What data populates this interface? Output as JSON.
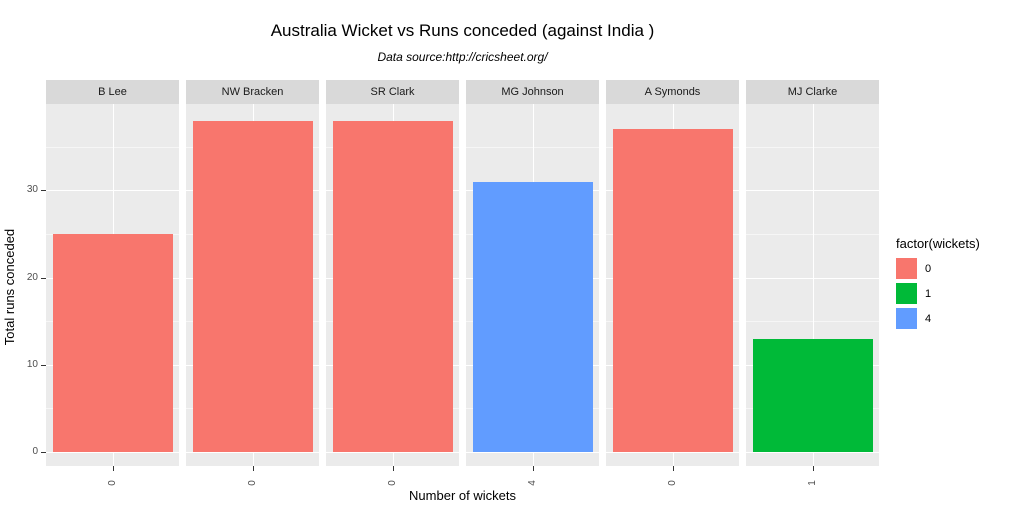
{
  "chart_data": {
    "type": "bar",
    "title": "Australia Wicket vs Runs conceded (against India )",
    "subtitle": "Data source:http://cricsheet.org/",
    "xlabel": "Number of wickets",
    "ylabel": "Total runs conceded",
    "faceting": "one panel per bowler, single bar per panel",
    "categories": [
      "B Lee",
      "NW Bracken",
      "SR Clark",
      "MG Johnson",
      "A Symonds",
      "MJ Clarke"
    ],
    "x_tick_labels": [
      "0",
      "0",
      "0",
      "4",
      "0",
      "1"
    ],
    "values": [
      25,
      38,
      38,
      31,
      37,
      13
    ],
    "bar_colors": [
      "#F8766D",
      "#F8766D",
      "#F8766D",
      "#619CFF",
      "#F8766D",
      "#00BA38"
    ],
    "y_ticks": [
      0,
      10,
      20,
      30
    ],
    "y_minor_ticks": [
      5,
      15,
      25,
      35
    ],
    "ylim": [
      -1.6,
      39.9
    ],
    "grid": true,
    "legend": {
      "title": "factor(wickets)",
      "position": "right",
      "entries": [
        {
          "label": "0",
          "color": "#F8766D"
        },
        {
          "label": "1",
          "color": "#00BA38"
        },
        {
          "label": "4",
          "color": "#619CFF"
        }
      ]
    },
    "colors": {
      "panel_bg": "#EBEBEB",
      "strip_bg": "#D9D9D9",
      "grid_major": "#FFFFFF",
      "tick_text": "#4D4D4D",
      "text": "#000000"
    }
  }
}
